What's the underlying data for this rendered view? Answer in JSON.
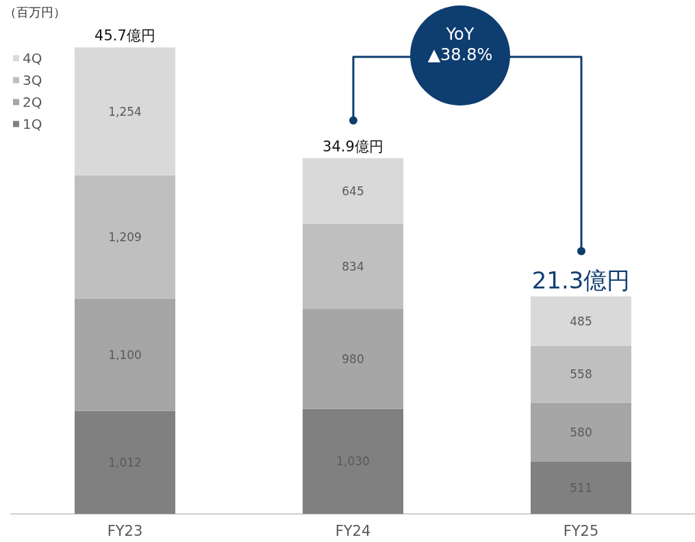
{
  "chart_data": {
    "type": "bar",
    "ylabel": "（百万円）",
    "categories": [
      "FY23",
      "FY24",
      "FY25"
    ],
    "stacked": true,
    "legend": "top left",
    "series": [
      {
        "name": "1Q",
        "color": "#808080",
        "values": [
          1012,
          1030,
          511
        ],
        "value_labels": [
          "1,012",
          "1,030",
          "511"
        ]
      },
      {
        "name": "2Q",
        "color": "#a6a6a6",
        "values": [
          1100,
          980,
          580
        ],
        "value_labels": [
          "1,100",
          "980",
          "580"
        ]
      },
      {
        "name": "3Q",
        "color": "#bfbfbf",
        "values": [
          1209,
          834,
          558
        ],
        "value_labels": [
          "1,209",
          "834",
          "558"
        ]
      },
      {
        "name": "4Q",
        "color": "#d9d9d9",
        "values": [
          1254,
          645,
          485
        ],
        "value_labels": [
          "1,254",
          "645",
          "485"
        ]
      }
    ],
    "annotations": [
      {
        "text": "45.7億円",
        "x": "FY23",
        "y": 4575
      },
      {
        "text": "34.9億円",
        "x": "FY24",
        "y": 3489
      },
      {
        "text": "21.3億円",
        "x": "FY25",
        "y": 2134
      },
      "YoY ▲38.8%"
    ]
  }
}
